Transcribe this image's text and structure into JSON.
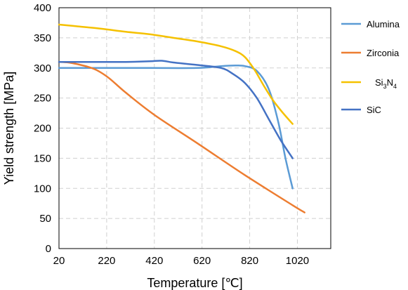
{
  "chart_data": {
    "type": "line",
    "title": "",
    "xlabel": "Temperature [℃]",
    "ylabel": "Yield strength [MPa]",
    "xlim": [
      20,
      1160
    ],
    "ylim": [
      0,
      400
    ],
    "xticks": [
      20,
      220,
      420,
      620,
      820,
      1020
    ],
    "yticks": [
      0,
      50,
      100,
      150,
      200,
      250,
      300,
      350,
      400
    ],
    "grid": "dashed",
    "legend": "right",
    "series": [
      {
        "name": "Alumina",
        "color": "#5B9BD5",
        "x": [
          20,
          200,
          400,
          600,
          700,
          760,
          800,
          850,
          900,
          940,
          970,
          1000
        ],
        "y": [
          300,
          300,
          300,
          300,
          303,
          304,
          303,
          295,
          265,
          210,
          150,
          100
        ]
      },
      {
        "name": "Zirconia",
        "color": "#ED7D31",
        "x": [
          20,
          60,
          100,
          140,
          180,
          230,
          300,
          420,
          600,
          800,
          1000,
          1050
        ],
        "y": [
          310,
          309,
          306,
          302,
          296,
          283,
          259,
          222,
          175,
          122,
          72,
          60
        ]
      },
      {
        "name": "Si3N4",
        "label_main": "Si",
        "label_sub1": "3",
        "label_mid": "N",
        "label_sub2": "4",
        "color": "#F5C100",
        "x": [
          20,
          100,
          200,
          300,
          400,
          500,
          600,
          700,
          760,
          800,
          840,
          880,
          920,
          960,
          1000
        ],
        "y": [
          372,
          369,
          365,
          360,
          356,
          350,
          344,
          336,
          328,
          318,
          297,
          270,
          245,
          225,
          207
        ]
      },
      {
        "name": "SiC",
        "color": "#4472C4",
        "x": [
          20,
          100,
          200,
          300,
          400,
          450,
          500,
          600,
          700,
          750,
          800,
          850,
          900,
          950,
          1000
        ],
        "y": [
          310,
          310,
          310,
          310,
          311,
          312,
          309,
          305,
          300,
          290,
          275,
          250,
          215,
          180,
          150
        ]
      }
    ]
  }
}
